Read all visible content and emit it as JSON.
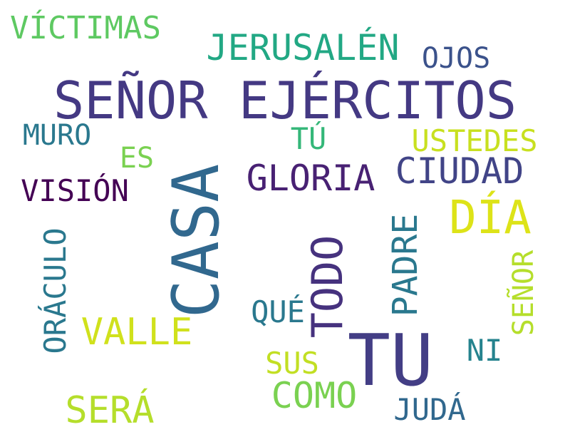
{
  "word_cloud": {
    "words": [
      {
        "key": "victimas",
        "text": "VÍCTIMAS",
        "color": "#5ec962"
      },
      {
        "key": "jerusalen",
        "text": "JERUSALÉN",
        "color": "#22a884"
      },
      {
        "key": "ojos",
        "text": "OJOS",
        "color": "#3b528b"
      },
      {
        "key": "senor_ejercitos",
        "text": "SEÑOR EJÉRCITOS",
        "color": "#443983"
      },
      {
        "key": "muro",
        "text": "MURO",
        "color": "#2a788e"
      },
      {
        "key": "tu_acc",
        "text": "TÚ",
        "color": "#35b779"
      },
      {
        "key": "ustedes",
        "text": "USTEDES",
        "color": "#c8e020"
      },
      {
        "key": "es",
        "text": "ES",
        "color": "#7ad151"
      },
      {
        "key": "gloria",
        "text": "GLORIA",
        "color": "#482173"
      },
      {
        "key": "ciudad",
        "text": "CIUDAD",
        "color": "#414487"
      },
      {
        "key": "vision",
        "text": "VISIÓN",
        "color": "#440154"
      },
      {
        "key": "dia",
        "text": "DÍA",
        "color": "#dde318"
      },
      {
        "key": "casa",
        "text": "CASA",
        "color": "#31688e"
      },
      {
        "key": "oraculo",
        "text": "ORÁCULO",
        "color": "#2a788e"
      },
      {
        "key": "padre",
        "text": "PADRE",
        "color": "#2a788e"
      },
      {
        "key": "todo",
        "text": "TODO",
        "color": "#46327e"
      },
      {
        "key": "senor",
        "text": "SEÑOR",
        "color": "#b5de2b"
      },
      {
        "key": "que",
        "text": "QUÉ",
        "color": "#2a788e"
      },
      {
        "key": "valle",
        "text": "VALLE",
        "color": "#d0e11c"
      },
      {
        "key": "tu",
        "text": "TU",
        "color": "#433e85"
      },
      {
        "key": "ni",
        "text": "NI",
        "color": "#25838e"
      },
      {
        "key": "sus",
        "text": "SUS",
        "color": "#c2df23"
      },
      {
        "key": "como",
        "text": "COMO",
        "color": "#7ad151"
      },
      {
        "key": "sera",
        "text": "SERÁ",
        "color": "#b5de2b"
      },
      {
        "key": "juda",
        "text": "JUDÁ",
        "color": "#31688e"
      }
    ]
  }
}
